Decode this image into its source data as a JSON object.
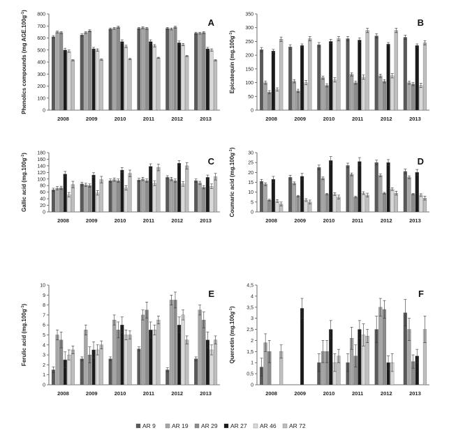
{
  "chart_data": [
    {
      "type": "bar",
      "panel_label": "A",
      "ylabel": "Phenolics compounds (mg AGE.100g",
      "ylabel_sup": "-1",
      "ylabel_close": ")",
      "ylim": [
        0,
        800
      ],
      "yticks": [
        "0",
        "100",
        "200",
        "300",
        "400",
        "500",
        "600",
        "700",
        "800"
      ],
      "tick_values": [
        0,
        100,
        200,
        300,
        400,
        500,
        600,
        700,
        800
      ],
      "categories": [
        "2008",
        "2009",
        "2010",
        "2011",
        "2012",
        "2013"
      ],
      "series": [
        {
          "name": "AR 9",
          "values": [
            610,
            625,
            675,
            680,
            680,
            640
          ],
          "errors": [
            10,
            10,
            8,
            8,
            8,
            8
          ]
        },
        {
          "name": "AR 19",
          "values": [
            650,
            645,
            680,
            685,
            675,
            640
          ],
          "errors": [
            8,
            8,
            8,
            8,
            8,
            8
          ]
        },
        {
          "name": "AR 29",
          "values": [
            645,
            660,
            690,
            680,
            690,
            645
          ],
          "errors": [
            8,
            8,
            8,
            8,
            8,
            8
          ]
        },
        {
          "name": "AR 27",
          "values": [
            500,
            510,
            570,
            570,
            560,
            510
          ],
          "errors": [
            15,
            12,
            15,
            15,
            15,
            12
          ]
        },
        {
          "name": "AR 46",
          "values": [
            490,
            500,
            530,
            535,
            545,
            500
          ],
          "errors": [
            10,
            10,
            10,
            10,
            10,
            10
          ]
        },
        {
          "name": "AR 72",
          "values": [
            415,
            420,
            425,
            435,
            450,
            415
          ],
          "errors": [
            5,
            5,
            5,
            5,
            5,
            5
          ]
        }
      ]
    },
    {
      "type": "bar",
      "panel_label": "B",
      "ylabel": "Epicatequin (mg.100g",
      "ylabel_sup": "-1",
      "ylabel_close": ")",
      "ylim": [
        0,
        350
      ],
      "yticks": [
        "0",
        "50",
        "100",
        "150",
        "200",
        "250",
        "300",
        "350"
      ],
      "tick_values": [
        0,
        50,
        100,
        150,
        200,
        250,
        300,
        350
      ],
      "categories": [
        "2008",
        "2009",
        "2010",
        "2011",
        "2012",
        "2013"
      ],
      "series": [
        {
          "name": "AR 9",
          "values": [
            220,
            230,
            238,
            260,
            270,
            265
          ],
          "errors": [
            8,
            8,
            8,
            8,
            8,
            8
          ]
        },
        {
          "name": "AR 19",
          "values": [
            100,
            105,
            118,
            130,
            125,
            100
          ],
          "errors": [
            6,
            6,
            6,
            6,
            6,
            6
          ]
        },
        {
          "name": "AR 29",
          "values": [
            65,
            70,
            90,
            100,
            105,
            95
          ],
          "errors": [
            6,
            6,
            6,
            6,
            6,
            6
          ]
        },
        {
          "name": "AR 27",
          "values": [
            215,
            235,
            250,
            255,
            240,
            235
          ],
          "errors": [
            6,
            6,
            8,
            8,
            6,
            6
          ]
        },
        {
          "name": "AR 46",
          "values": [
            75,
            100,
            110,
            120,
            125,
            90
          ],
          "errors": [
            6,
            8,
            8,
            8,
            8,
            8
          ]
        },
        {
          "name": "AR 72",
          "values": [
            258,
            260,
            260,
            290,
            290,
            245
          ],
          "errors": [
            8,
            8,
            8,
            8,
            8,
            8
          ]
        }
      ]
    },
    {
      "type": "bar",
      "panel_label": "C",
      "ylabel": "Gallic acid (mg.100g",
      "ylabel_sup": "-1",
      "ylabel_close": ")",
      "ylim": [
        0,
        180
      ],
      "yticks": [
        "0",
        "20",
        "40",
        "60",
        "80",
        "100",
        "120",
        "140",
        "160",
        "180"
      ],
      "tick_values": [
        0,
        20,
        40,
        60,
        80,
        100,
        120,
        140,
        160,
        180
      ],
      "categories": [
        "2008",
        "2009",
        "2010",
        "2011",
        "2012",
        "2013"
      ],
      "series": [
        {
          "name": "AR 9",
          "values": [
            67,
            85,
            95,
            97,
            105,
            95
          ],
          "errors": [
            5,
            5,
            5,
            5,
            5,
            5
          ]
        },
        {
          "name": "AR 19",
          "values": [
            72,
            82,
            98,
            100,
            100,
            88
          ],
          "errors": [
            5,
            5,
            5,
            5,
            5,
            5
          ]
        },
        {
          "name": "AR 29",
          "values": [
            73,
            80,
            95,
            95,
            95,
            75
          ],
          "errors": [
            5,
            5,
            5,
            5,
            5,
            5
          ]
        },
        {
          "name": "AR 27",
          "values": [
            115,
            112,
            127,
            138,
            148,
            105
          ],
          "errors": [
            8,
            7,
            8,
            8,
            8,
            7
          ]
        },
        {
          "name": "AR 46",
          "values": [
            52,
            58,
            73,
            87,
            85,
            78
          ],
          "errors": [
            7,
            7,
            7,
            7,
            7,
            7
          ]
        },
        {
          "name": "AR 72",
          "values": [
            83,
            98,
            117,
            135,
            140,
            107
          ],
          "errors": [
            10,
            10,
            10,
            10,
            10,
            10
          ]
        }
      ]
    },
    {
      "type": "bar",
      "panel_label": "D",
      "ylabel": "Coumaric acid (mg.100g",
      "ylabel_sup": "-1",
      "ylabel_close": ")",
      "ylim": [
        0,
        30
      ],
      "yticks": [
        "0",
        "5",
        "10",
        "15",
        "20",
        "25",
        "30"
      ],
      "tick_values": [
        0,
        5,
        10,
        15,
        20,
        25,
        30
      ],
      "categories": [
        "2008",
        "2009",
        "2010",
        "2011",
        "2012",
        "2013"
      ],
      "series": [
        {
          "name": "AR 9",
          "values": [
            15.5,
            17.5,
            22.5,
            23.5,
            25,
            20.5
          ],
          "errors": [
            1,
            1,
            1.2,
            1.2,
            1.2,
            1.2
          ]
        },
        {
          "name": "AR 19",
          "values": [
            14,
            14.5,
            17,
            19,
            18.5,
            17.5
          ],
          "errors": [
            0.7,
            0.7,
            0.7,
            0.7,
            0.7,
            0.7
          ]
        },
        {
          "name": "AR 29",
          "values": [
            6,
            8,
            9,
            7.5,
            9.5,
            9
          ],
          "errors": [
            0.4,
            0.4,
            0.4,
            0.4,
            0.4,
            0.4
          ]
        },
        {
          "name": "AR 27",
          "values": [
            16.5,
            18,
            26,
            25.5,
            25,
            20
          ],
          "errors": [
            1.5,
            1.5,
            2,
            2,
            1.5,
            1.5
          ]
        },
        {
          "name": "AR 46",
          "values": [
            5.5,
            6,
            9,
            9.5,
            11.5,
            8.5
          ],
          "errors": [
            0.7,
            0.7,
            0.7,
            0.7,
            0.7,
            0.7
          ]
        },
        {
          "name": "AR 72",
          "values": [
            4,
            5,
            7.5,
            8.5,
            9.5,
            7
          ],
          "errors": [
            1,
            1,
            1,
            1,
            1,
            1
          ]
        }
      ]
    },
    {
      "type": "bar",
      "panel_label": "E",
      "ylabel": "Ferulic acid (mg.100g",
      "ylabel_sup": "-1",
      "ylabel_close": ")",
      "ylim": [
        0,
        10
      ],
      "yticks": [
        "0",
        "1",
        "2",
        "3",
        "4",
        "5",
        "6",
        "7",
        "8",
        "9",
        "10"
      ],
      "tick_values": [
        0,
        1,
        2,
        3,
        4,
        5,
        6,
        7,
        8,
        9,
        10
      ],
      "categories": [
        "2008",
        "2009",
        "2010",
        "2011",
        "2012",
        "2013"
      ],
      "series": [
        {
          "name": "AR 9",
          "values": [
            1.5,
            2.6,
            2.6,
            3.6,
            1.5,
            2.6
          ],
          "errors": [
            0.3,
            0.2,
            0.2,
            0.2,
            0.2,
            0.2
          ]
        },
        {
          "name": "AR 19",
          "values": [
            5,
            5.5,
            6.5,
            7,
            8.5,
            7.5
          ],
          "errors": [
            0.5,
            0.5,
            0.5,
            0.5,
            0.5,
            0.5
          ]
        },
        {
          "name": "AR 29",
          "values": [
            4.5,
            3,
            5.5,
            7.5,
            8.5,
            6.5
          ],
          "errors": [
            0.8,
            0.8,
            0.8,
            0.8,
            0.8,
            0.8
          ]
        },
        {
          "name": "AR 27",
          "values": [
            2.5,
            3.5,
            6,
            5.5,
            6,
            4.5
          ],
          "errors": [
            0.8,
            0.8,
            0.8,
            0.8,
            0.8,
            0.8
          ]
        },
        {
          "name": "AR 46",
          "values": [
            3,
            3.5,
            5,
            5.5,
            7,
            3.5
          ],
          "errors": [
            0.5,
            0.5,
            0.5,
            0.5,
            0.5,
            0.5
          ]
        },
        {
          "name": "AR 72",
          "values": [
            3.5,
            4,
            5,
            6.5,
            4.5,
            4.5
          ],
          "errors": [
            0.4,
            0.4,
            0.4,
            0.4,
            0.4,
            0.4
          ]
        }
      ]
    },
    {
      "type": "bar",
      "panel_label": "F",
      "ylabel": "Quercetin (mg.100g",
      "ylabel_sup": "-1",
      "ylabel_close": ")",
      "ylim": [
        0,
        4.5
      ],
      "yticks": [
        "0",
        "0,5",
        "1",
        "1,5",
        "2",
        "2,5",
        "3",
        "3,5",
        "4",
        "4,5"
      ],
      "tick_values": [
        0,
        0.5,
        1,
        1.5,
        2,
        2.5,
        3,
        3.5,
        4,
        4.5
      ],
      "categories": [
        "2008",
        "2009",
        "2010",
        "2011",
        "2012",
        "2013"
      ],
      "series": [
        {
          "name": "AR 9",
          "values": [
            0.8,
            0,
            1,
            1,
            2.5,
            3.25
          ],
          "errors": [
            0.4,
            0,
            0.4,
            0.4,
            0.6,
            0.6
          ]
        },
        {
          "name": "AR 19",
          "values": [
            1.9,
            0,
            1.5,
            2.1,
            3.5,
            2.5
          ],
          "errors": [
            0.4,
            0,
            0.5,
            0.5,
            0.4,
            0.5
          ]
        },
        {
          "name": "AR 29",
          "values": [
            1.5,
            0,
            1.5,
            1.3,
            3.4,
            1.05
          ],
          "errors": [
            0.5,
            0,
            0.5,
            0.5,
            0.4,
            0.3
          ]
        },
        {
          "name": "AR 27",
          "values": [
            0,
            3.45,
            2.5,
            2.5,
            1,
            1.3
          ],
          "errors": [
            0,
            0.45,
            0.4,
            0.4,
            0.3,
            0.3
          ]
        },
        {
          "name": "AR 46",
          "values": [
            0,
            0,
            1,
            2.25,
            1,
            0
          ],
          "errors": [
            0,
            0,
            0.4,
            0.5,
            0.4,
            0
          ]
        },
        {
          "name": "AR 72",
          "values": [
            1.5,
            0,
            1.3,
            2.2,
            0,
            2.5
          ],
          "errors": [
            0.3,
            0,
            0.3,
            0.3,
            0,
            0.6
          ]
        }
      ]
    }
  ],
  "legend": [
    {
      "label": "AR 9",
      "color": "#595959"
    },
    {
      "label": "AR 19",
      "color": "#a6a6a6"
    },
    {
      "label": "AR 29",
      "color": "#8c8c8c"
    },
    {
      "label": "AR 27",
      "color": "#1a1a1a"
    },
    {
      "label": "AR 46",
      "color": "#d9d9d9"
    },
    {
      "label": "AR 72",
      "color": "#bfbfbf"
    }
  ],
  "series_colors": [
    "#595959",
    "#a6a6a6",
    "#8c8c8c",
    "#1a1a1a",
    "#d9d9d9",
    "#bfbfbf"
  ]
}
